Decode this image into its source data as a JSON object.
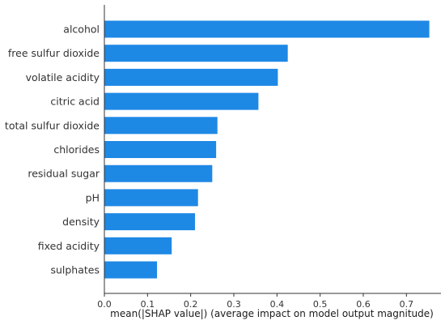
{
  "chart_data": {
    "type": "bar",
    "orientation": "horizontal",
    "categories": [
      "alcohol",
      "free sulfur dioxide",
      "volatile acidity",
      "citric acid",
      "total sulfur dioxide",
      "chlorides",
      "residual sugar",
      "pH",
      "density",
      "fixed acidity",
      "sulphates"
    ],
    "values": [
      0.753,
      0.425,
      0.402,
      0.357,
      0.262,
      0.259,
      0.25,
      0.217,
      0.21,
      0.156,
      0.122
    ],
    "title": "",
    "xlabel": "mean(|SHAP value|) (average impact on model output magnitude)",
    "ylabel": "",
    "xlim": [
      0,
      0.78
    ],
    "xticks": [
      0.0,
      0.1,
      0.2,
      0.3,
      0.4,
      0.5,
      0.6,
      0.7
    ],
    "xtick_labels": [
      "0.0",
      "0.1",
      "0.2",
      "0.3",
      "0.4",
      "0.5",
      "0.6",
      "0.7"
    ],
    "bar_color": "#1E88E5",
    "grid": false,
    "legend": "none"
  }
}
